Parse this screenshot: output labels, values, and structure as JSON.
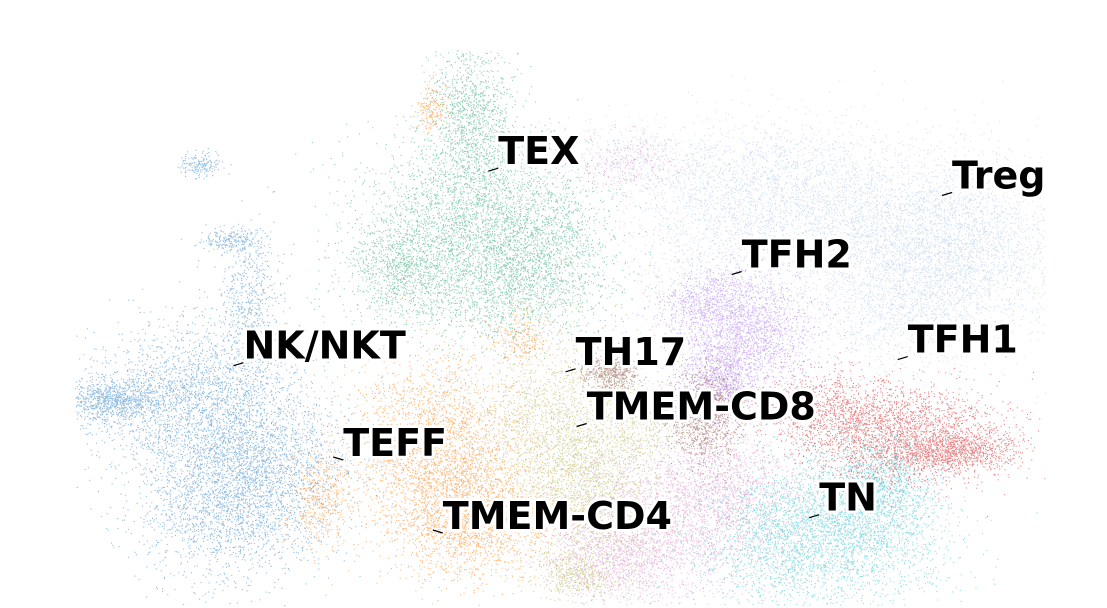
{
  "chart_data": {
    "type": "scatter",
    "title": "",
    "xlabel": "",
    "ylabel": "",
    "axes_visible": false,
    "grid": false,
    "legend": "none",
    "x_range": [
      0,
      100
    ],
    "y_range": [
      0,
      100
    ],
    "series": [
      {
        "name": "TEX",
        "color": "#2ca02c",
        "display_color": "#3aa77a",
        "centroid": [
          42,
          72
        ],
        "label_pos": [
          45,
          73
        ]
      },
      {
        "name": "Treg",
        "color": "#aec7e8",
        "centroid": [
          84,
          63
        ],
        "label_pos": [
          86,
          69
        ]
      },
      {
        "name": "TFH2",
        "color": "#9467bd",
        "display_color": "#b27ff0",
        "centroid": [
          68,
          47
        ],
        "label_pos": [
          67,
          56
        ]
      },
      {
        "name": "NK/NKT",
        "color": "#1f77b4",
        "display_color": "#3b86c4",
        "centroid": [
          17,
          30
        ],
        "label_pos": [
          22,
          41
        ]
      },
      {
        "name": "TH17",
        "color": "#8c564b",
        "centroid": [
          62,
          32
        ],
        "label_pos": [
          52,
          40
        ]
      },
      {
        "name": "TFH1",
        "color": "#d62728",
        "centroid": [
          83,
          30
        ],
        "label_pos": [
          82,
          42
        ]
      },
      {
        "name": "TMEM-CD8",
        "color": "#bcbd22",
        "display_color": "#b8b45a",
        "centroid": [
          50,
          25
        ],
        "label_pos": [
          53,
          31
        ]
      },
      {
        "name": "TEFF",
        "color": "#ff7f0e",
        "centroid": [
          39,
          26
        ],
        "label_pos": [
          31,
          25
        ]
      },
      {
        "name": "TMEM-CD4",
        "color": "#e377c2",
        "display_color": "#d98cc6",
        "centroid": [
          62,
          16
        ],
        "label_pos": [
          40,
          13
        ]
      },
      {
        "name": "TN",
        "color": "#17becf",
        "display_color": "#3cc0d0",
        "centroid": [
          76,
          15
        ],
        "label_pos": [
          74,
          16
        ]
      }
    ]
  }
}
